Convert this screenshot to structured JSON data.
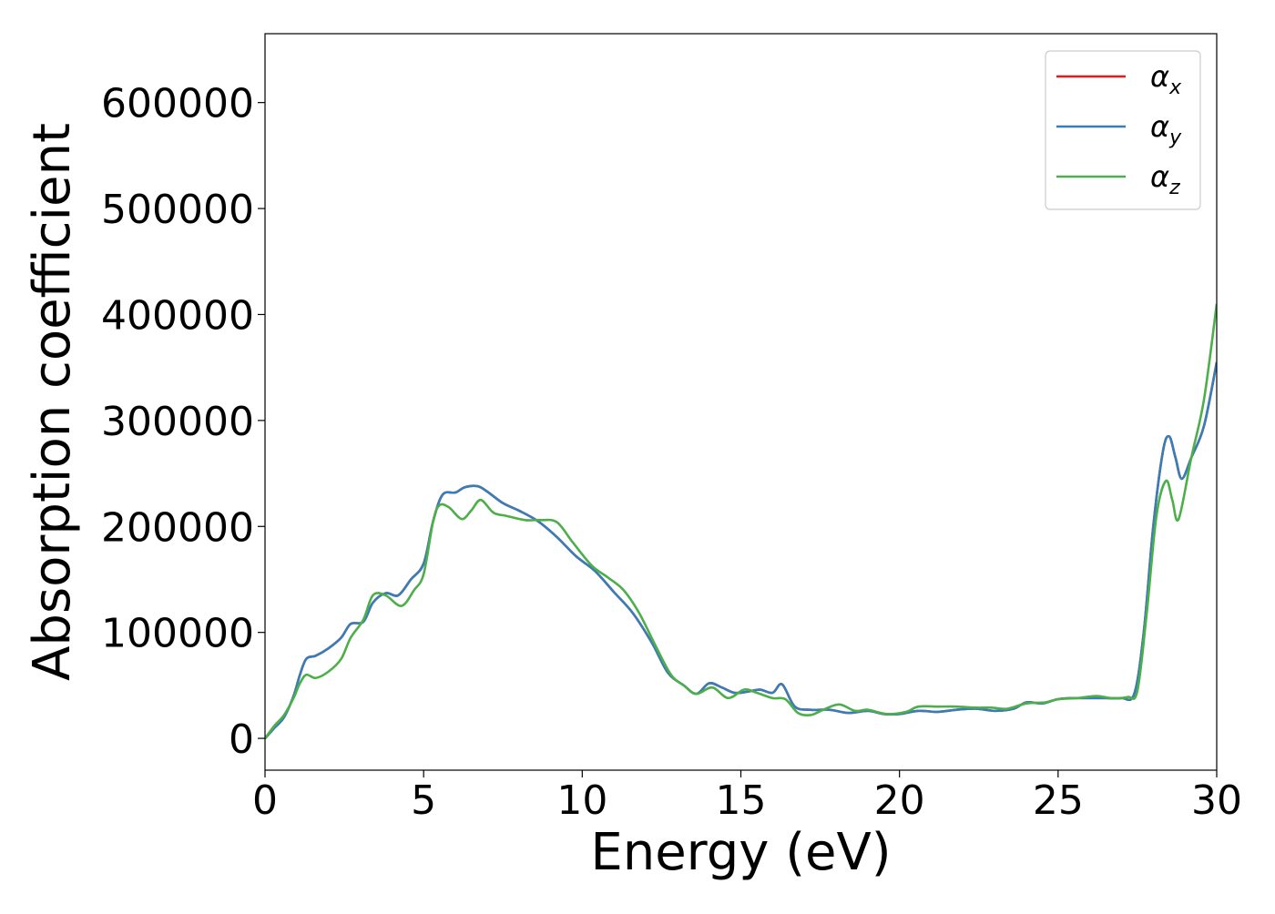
{
  "chart_data": {
    "type": "line",
    "title": "",
    "xlabel": "Energy (eV)",
    "ylabel": "Absorption coefficient",
    "xlim": [
      0,
      30
    ],
    "ylim": [
      -30000,
      665000
    ],
    "xticks": [
      0,
      5,
      10,
      15,
      20,
      25,
      30
    ],
    "xtick_labels": [
      "0",
      "5",
      "10",
      "15",
      "20",
      "25",
      "30"
    ],
    "yticks": [
      0,
      100000,
      200000,
      300000,
      400000,
      500000,
      600000
    ],
    "ytick_labels": [
      "0",
      "100000",
      "200000",
      "300000",
      "400000",
      "500000",
      "600000"
    ],
    "grid": false,
    "legend_position": "top-right",
    "series": [
      {
        "name": "α",
        "subscript": "x",
        "color": "#e41a1c",
        "points": [
          [
            0,
            0
          ],
          [
            0.3,
            10000
          ],
          [
            0.6,
            20000
          ],
          [
            0.9,
            40000
          ],
          [
            1.1,
            60000
          ],
          [
            1.3,
            75000
          ],
          [
            1.6,
            78000
          ],
          [
            2.0,
            85000
          ],
          [
            2.4,
            95000
          ],
          [
            2.7,
            108000
          ],
          [
            3.1,
            110000
          ],
          [
            3.4,
            128000
          ],
          [
            3.8,
            137000
          ],
          [
            4.2,
            135000
          ],
          [
            4.6,
            150000
          ],
          [
            5.0,
            165000
          ],
          [
            5.3,
            205000
          ],
          [
            5.6,
            230000
          ],
          [
            6.0,
            232000
          ],
          [
            6.3,
            237000
          ],
          [
            6.7,
            238000
          ],
          [
            7.0,
            233000
          ],
          [
            7.5,
            222000
          ],
          [
            8.0,
            215000
          ],
          [
            8.6,
            205000
          ],
          [
            9.2,
            190000
          ],
          [
            9.8,
            172000
          ],
          [
            10.4,
            158000
          ],
          [
            11.0,
            138000
          ],
          [
            11.6,
            118000
          ],
          [
            12.2,
            90000
          ],
          [
            12.7,
            62000
          ],
          [
            13.2,
            50000
          ],
          [
            13.6,
            42000
          ],
          [
            14.0,
            52000
          ],
          [
            14.4,
            48000
          ],
          [
            14.8,
            43000
          ],
          [
            15.2,
            44000
          ],
          [
            15.6,
            46000
          ],
          [
            16.0,
            43000
          ],
          [
            16.3,
            51000
          ],
          [
            16.7,
            30000
          ],
          [
            17.2,
            27000
          ],
          [
            17.8,
            27000
          ],
          [
            18.4,
            24000
          ],
          [
            19.0,
            26000
          ],
          [
            19.5,
            23000
          ],
          [
            20.0,
            23000
          ],
          [
            20.6,
            26000
          ],
          [
            21.2,
            25000
          ],
          [
            21.8,
            27000
          ],
          [
            22.4,
            28000
          ],
          [
            23.0,
            26000
          ],
          [
            23.6,
            28000
          ],
          [
            24.0,
            34000
          ],
          [
            24.5,
            33000
          ],
          [
            25.0,
            37000
          ],
          [
            25.5,
            38000
          ],
          [
            26.0,
            38000
          ],
          [
            26.5,
            38000
          ],
          [
            27.0,
            38000
          ],
          [
            27.4,
            42000
          ],
          [
            27.7,
            100000
          ],
          [
            28.0,
            200000
          ],
          [
            28.3,
            270000
          ],
          [
            28.5,
            285000
          ],
          [
            28.7,
            265000
          ],
          [
            28.9,
            245000
          ],
          [
            29.2,
            265000
          ],
          [
            29.6,
            295000
          ],
          [
            30.0,
            355000
          ]
        ]
      },
      {
        "name": "α",
        "subscript": "y",
        "color": "#377eb8",
        "points": [
          [
            0,
            0
          ],
          [
            0.3,
            10000
          ],
          [
            0.6,
            20000
          ],
          [
            0.9,
            40000
          ],
          [
            1.1,
            60000
          ],
          [
            1.3,
            75000
          ],
          [
            1.6,
            78000
          ],
          [
            2.0,
            85000
          ],
          [
            2.4,
            95000
          ],
          [
            2.7,
            108000
          ],
          [
            3.1,
            110000
          ],
          [
            3.4,
            128000
          ],
          [
            3.8,
            137000
          ],
          [
            4.2,
            135000
          ],
          [
            4.6,
            150000
          ],
          [
            5.0,
            165000
          ],
          [
            5.3,
            205000
          ],
          [
            5.6,
            230000
          ],
          [
            6.0,
            232000
          ],
          [
            6.3,
            237000
          ],
          [
            6.7,
            238000
          ],
          [
            7.0,
            233000
          ],
          [
            7.5,
            222000
          ],
          [
            8.0,
            215000
          ],
          [
            8.6,
            205000
          ],
          [
            9.2,
            190000
          ],
          [
            9.8,
            172000
          ],
          [
            10.4,
            158000
          ],
          [
            11.0,
            138000
          ],
          [
            11.6,
            118000
          ],
          [
            12.2,
            90000
          ],
          [
            12.7,
            62000
          ],
          [
            13.2,
            50000
          ],
          [
            13.6,
            42000
          ],
          [
            14.0,
            52000
          ],
          [
            14.4,
            48000
          ],
          [
            14.8,
            43000
          ],
          [
            15.2,
            44000
          ],
          [
            15.6,
            46000
          ],
          [
            16.0,
            43000
          ],
          [
            16.3,
            51000
          ],
          [
            16.7,
            30000
          ],
          [
            17.2,
            27000
          ],
          [
            17.8,
            27000
          ],
          [
            18.4,
            24000
          ],
          [
            19.0,
            26000
          ],
          [
            19.5,
            23000
          ],
          [
            20.0,
            23000
          ],
          [
            20.6,
            26000
          ],
          [
            21.2,
            25000
          ],
          [
            21.8,
            27000
          ],
          [
            22.4,
            28000
          ],
          [
            23.0,
            26000
          ],
          [
            23.6,
            28000
          ],
          [
            24.0,
            34000
          ],
          [
            24.5,
            33000
          ],
          [
            25.0,
            37000
          ],
          [
            25.5,
            38000
          ],
          [
            26.0,
            38000
          ],
          [
            26.5,
            38000
          ],
          [
            27.0,
            38000
          ],
          [
            27.4,
            42000
          ],
          [
            27.7,
            100000
          ],
          [
            28.0,
            200000
          ],
          [
            28.3,
            270000
          ],
          [
            28.5,
            285000
          ],
          [
            28.7,
            265000
          ],
          [
            28.9,
            245000
          ],
          [
            29.2,
            265000
          ],
          [
            29.6,
            295000
          ],
          [
            30.0,
            355000
          ]
        ]
      },
      {
        "name": "α",
        "subscript": "z",
        "color": "#4daf4a",
        "points": [
          [
            0,
            0
          ],
          [
            0.3,
            12000
          ],
          [
            0.6,
            22000
          ],
          [
            0.9,
            38000
          ],
          [
            1.1,
            52000
          ],
          [
            1.3,
            60000
          ],
          [
            1.6,
            57000
          ],
          [
            2.0,
            63000
          ],
          [
            2.4,
            75000
          ],
          [
            2.7,
            95000
          ],
          [
            3.1,
            112000
          ],
          [
            3.4,
            135000
          ],
          [
            3.8,
            135000
          ],
          [
            4.3,
            125000
          ],
          [
            4.7,
            140000
          ],
          [
            5.0,
            155000
          ],
          [
            5.3,
            205000
          ],
          [
            5.5,
            220000
          ],
          [
            5.8,
            218000
          ],
          [
            6.2,
            207000
          ],
          [
            6.5,
            215000
          ],
          [
            6.8,
            225000
          ],
          [
            7.2,
            213000
          ],
          [
            7.6,
            210000
          ],
          [
            8.2,
            206000
          ],
          [
            8.7,
            206000
          ],
          [
            9.2,
            204000
          ],
          [
            9.7,
            185000
          ],
          [
            10.3,
            163000
          ],
          [
            10.8,
            152000
          ],
          [
            11.3,
            140000
          ],
          [
            11.8,
            118000
          ],
          [
            12.3,
            88000
          ],
          [
            12.8,
            60000
          ],
          [
            13.2,
            50000
          ],
          [
            13.6,
            42000
          ],
          [
            14.1,
            48000
          ],
          [
            14.6,
            38000
          ],
          [
            15.1,
            46000
          ],
          [
            15.5,
            43000
          ],
          [
            16.0,
            38000
          ],
          [
            16.4,
            37000
          ],
          [
            16.8,
            24000
          ],
          [
            17.2,
            22000
          ],
          [
            17.6,
            27000
          ],
          [
            18.1,
            32000
          ],
          [
            18.6,
            26000
          ],
          [
            19.0,
            27000
          ],
          [
            19.6,
            23000
          ],
          [
            20.2,
            25000
          ],
          [
            20.6,
            30000
          ],
          [
            21.2,
            30000
          ],
          [
            21.8,
            30000
          ],
          [
            22.4,
            29000
          ],
          [
            22.9,
            29000
          ],
          [
            23.4,
            28000
          ],
          [
            24.0,
            33000
          ],
          [
            24.6,
            34000
          ],
          [
            25.0,
            37000
          ],
          [
            25.6,
            38000
          ],
          [
            26.2,
            40000
          ],
          [
            26.7,
            38000
          ],
          [
            27.2,
            39000
          ],
          [
            27.5,
            45000
          ],
          [
            27.8,
            120000
          ],
          [
            28.1,
            210000
          ],
          [
            28.4,
            243000
          ],
          [
            28.6,
            225000
          ],
          [
            28.8,
            207000
          ],
          [
            29.2,
            265000
          ],
          [
            29.6,
            320000
          ],
          [
            30.0,
            410000
          ]
        ]
      }
    ]
  }
}
